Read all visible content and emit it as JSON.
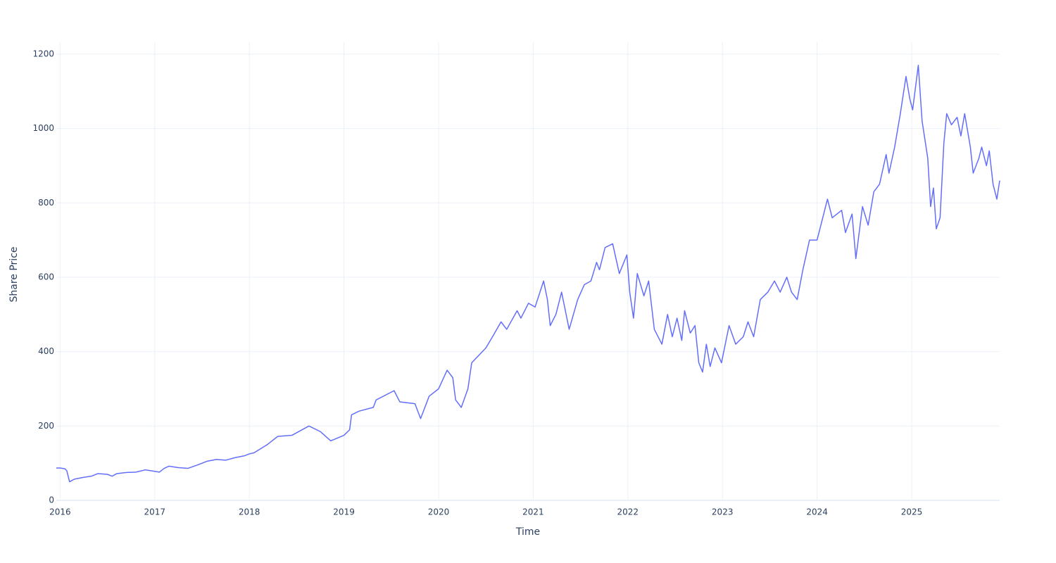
{
  "chart_data": {
    "type": "line",
    "x_label": "Time",
    "y_label": "Share Price",
    "x": [
      2015.96,
      2016.0,
      2016.05,
      2016.07,
      2016.1,
      2016.15,
      2016.25,
      2016.33,
      2016.4,
      2016.5,
      2016.55,
      2016.6,
      2016.7,
      2016.8,
      2016.9,
      2017.0,
      2017.05,
      2017.1,
      2017.15,
      2017.25,
      2017.35,
      2017.45,
      2017.55,
      2017.65,
      2017.75,
      2017.85,
      2017.95,
      2018.0,
      2018.05,
      2018.19,
      2018.3,
      2018.45,
      2018.63,
      2018.75,
      2018.86,
      2019.0,
      2019.06,
      2019.08,
      2019.16,
      2019.31,
      2019.34,
      2019.53,
      2019.59,
      2019.75,
      2019.81,
      2019.9,
      2020.0,
      2020.09,
      2020.15,
      2020.18,
      2020.24,
      2020.31,
      2020.35,
      2020.5,
      2020.57,
      2020.66,
      2020.72,
      2020.83,
      2020.87,
      2020.95,
      2021.02,
      2021.11,
      2021.15,
      2021.18,
      2021.24,
      2021.3,
      2021.38,
      2021.47,
      2021.54,
      2021.61,
      2021.67,
      2021.7,
      2021.76,
      2021.84,
      2021.91,
      2021.99,
      2022.02,
      2022.06,
      2022.1,
      2022.17,
      2022.22,
      2022.28,
      2022.36,
      2022.42,
      2022.47,
      2022.52,
      2022.57,
      2022.6,
      2022.66,
      2022.71,
      2022.75,
      2022.79,
      2022.83,
      2022.87,
      2022.92,
      2022.99,
      2023.07,
      2023.14,
      2023.22,
      2023.27,
      2023.33,
      2023.4,
      2023.48,
      2023.55,
      2023.61,
      2023.68,
      2023.73,
      2023.79,
      2023.85,
      2023.92,
      2024.0,
      2024.07,
      2024.11,
      2024.16,
      2024.26,
      2024.3,
      2024.37,
      2024.41,
      2024.48,
      2024.54,
      2024.6,
      2024.66,
      2024.73,
      2024.76,
      2024.82,
      2024.88,
      2024.94,
      2024.98,
      2025.01,
      2025.07,
      2025.11,
      2025.17,
      2025.2,
      2025.23,
      2025.26,
      2025.3,
      2025.34,
      2025.37,
      2025.42,
      2025.48,
      2025.52,
      2025.56,
      2025.62,
      2025.65,
      2025.71,
      2025.74,
      2025.79,
      2025.82,
      2025.86,
      2025.9,
      2025.93
    ],
    "series": [
      {
        "name": "Share Price",
        "color": "#636efa",
        "values": [
          87,
          87,
          85,
          80,
          50,
          57,
          62,
          65,
          72,
          70,
          65,
          72,
          75,
          76,
          82,
          78,
          76,
          86,
          92,
          88,
          86,
          95,
          105,
          110,
          108,
          115,
          120,
          125,
          128,
          150,
          172,
          175,
          200,
          185,
          160,
          175,
          190,
          230,
          240,
          250,
          270,
          295,
          265,
          260,
          220,
          280,
          300,
          350,
          330,
          270,
          250,
          300,
          370,
          410,
          440,
          480,
          460,
          510,
          490,
          530,
          520,
          590,
          540,
          470,
          500,
          560,
          460,
          540,
          580,
          590,
          640,
          620,
          680,
          690,
          610,
          660,
          560,
          490,
          610,
          550,
          590,
          460,
          420,
          500,
          440,
          490,
          430,
          510,
          450,
          470,
          370,
          345,
          420,
          360,
          410,
          370,
          470,
          420,
          440,
          480,
          440,
          540,
          560,
          590,
          560,
          600,
          560,
          540,
          620,
          700,
          700,
          770,
          810,
          760,
          780,
          720,
          770,
          650,
          790,
          740,
          830,
          850,
          930,
          880,
          950,
          1040,
          1140,
          1080,
          1050,
          1170,
          1020,
          920,
          790,
          840,
          730,
          760,
          960,
          1040,
          1010,
          1030,
          980,
          1040,
          950,
          880,
          920,
          950,
          900,
          940,
          850,
          810,
          860
        ]
      }
    ],
    "xlim": [
      2015.96,
      2025.93
    ],
    "ylim": [
      0,
      1232
    ],
    "xticks": [
      2016,
      2017,
      2018,
      2019,
      2020,
      2021,
      2022,
      2023,
      2024,
      2025
    ],
    "yticks": [
      0,
      200,
      400,
      600,
      800,
      1000,
      1200
    ],
    "grid": true
  }
}
